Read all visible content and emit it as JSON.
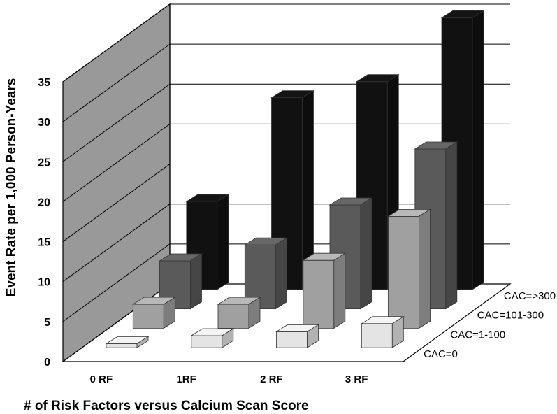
{
  "chart_data": {
    "type": "bar",
    "variant": "3d-grouped-depth",
    "categories": [
      "0 RF",
      "1RF",
      "2 RF",
      "3 RF"
    ],
    "series": [
      {
        "name": "CAC=0",
        "values": [
          0.5,
          1.5,
          2.0,
          3.0
        ],
        "color": "#e4e4e4"
      },
      {
        "name": "CAC=1-100",
        "values": [
          3.0,
          3.0,
          8.5,
          14.0
        ],
        "color": "#a0a0a0"
      },
      {
        "name": "CAC=101-300",
        "values": [
          6.0,
          8.0,
          13.0,
          20.0
        ],
        "color": "#5a5a5a"
      },
      {
        "name": "CAC=>300",
        "values": [
          11.0,
          24.0,
          26.0,
          34.0
        ],
        "color": "#111111"
      }
    ],
    "ylabel": "Event Rate per 1,000 Person-Years",
    "xlabel": "# of Risk Factors versus Calcium Scan Score",
    "ylim": [
      0,
      35
    ],
    "yticks": [
      "0",
      "5",
      "10",
      "15",
      "20",
      "25",
      "30",
      "35"
    ],
    "grid": true,
    "wall_color": "#999999"
  }
}
